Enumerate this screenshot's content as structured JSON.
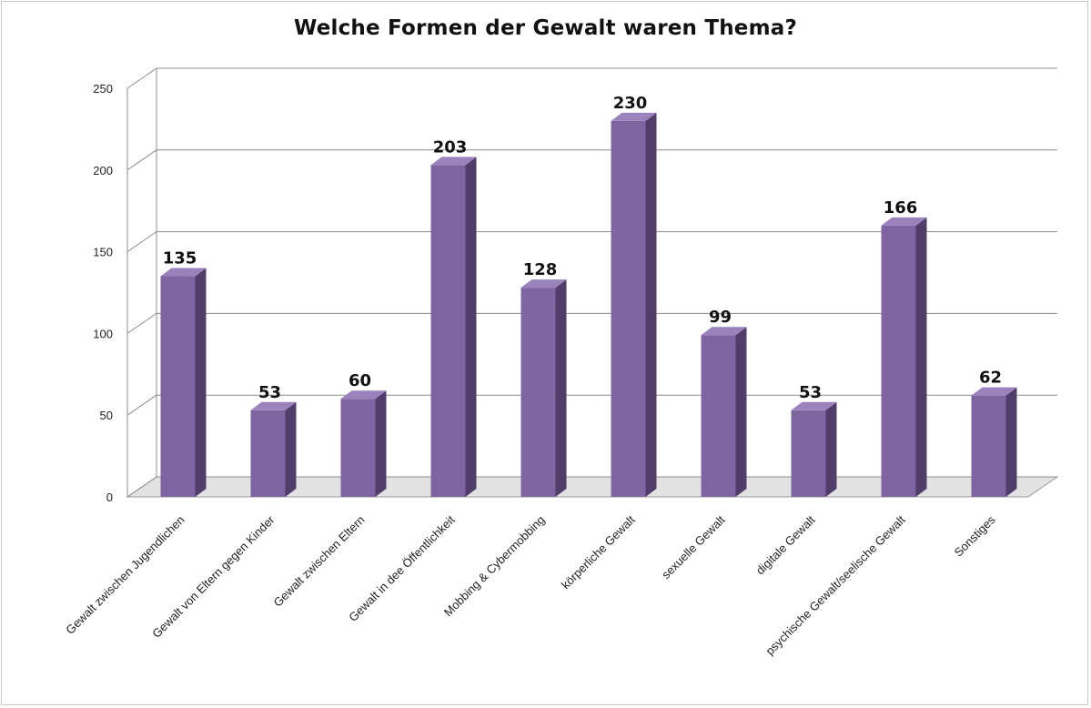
{
  "chart_data": {
    "type": "bar",
    "title": "Welche Formen der Gewalt waren Thema?",
    "xlabel": "",
    "ylabel": "",
    "ylim": [
      0,
      250
    ],
    "yticks": [
      0,
      50,
      100,
      150,
      200,
      250
    ],
    "grid": true,
    "legend": "none",
    "style": "3d-column",
    "bar_color": "#7f64a2",
    "bar_side_color": "#503d6a",
    "bar_top_color": "#9a82bd",
    "categories": [
      "Gewalt zwischen Jugendlichen",
      "Gewalt von Eltern gegen Kinder",
      "Gewalt zwischen Eltern",
      "Gewalt in dee Öffentlichkeit",
      "Mobbing & Cybermobbing",
      "körperliche Gewalt",
      "sexuelle Gewalt",
      "digitale Gewalt",
      "psychische Gewalt/seelische Gewalt",
      "Sonstiges"
    ],
    "values": [
      135,
      53,
      60,
      203,
      128,
      230,
      99,
      53,
      166,
      62
    ],
    "data_labels": [
      "135",
      "53",
      "60",
      "203",
      "128",
      "230",
      "99",
      "53",
      "166",
      "62"
    ]
  }
}
